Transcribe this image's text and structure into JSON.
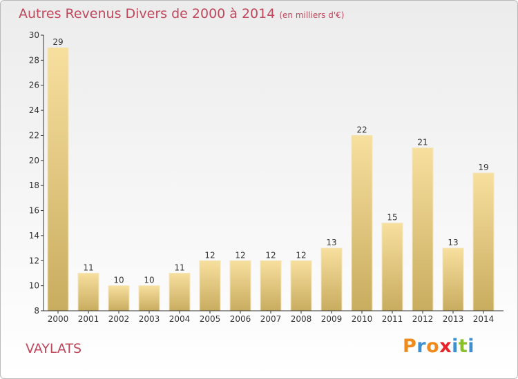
{
  "title": "Autres Revenus Divers de 2000 à 2014",
  "subtitle": "(en milliers d'€)",
  "place": "VAYLATS",
  "logo": "Proxiti",
  "colors": {
    "title": "#c0485d",
    "bar_light": "#f7df9e",
    "bar_dark": "#c8ac5f",
    "logo_letters": [
      "#f08a1d",
      "#3f8fcf",
      "#f08a1d",
      "#e8232a",
      "#3f8fcf",
      "#8bbf2a",
      "#3f8fcf"
    ]
  },
  "chart_data": {
    "type": "bar",
    "categories": [
      "2000",
      "2001",
      "2002",
      "2003",
      "2004",
      "2005",
      "2006",
      "2007",
      "2008",
      "2009",
      "2010",
      "2011",
      "2012",
      "2013",
      "2014"
    ],
    "values": [
      29,
      11,
      10,
      10,
      11,
      12,
      12,
      12,
      12,
      13,
      22,
      15,
      21,
      13,
      19
    ],
    "ylim": [
      8,
      30
    ],
    "yticks": [
      8,
      10,
      12,
      14,
      16,
      18,
      20,
      22,
      24,
      26,
      28,
      30
    ],
    "grid": false,
    "data_labels": true
  }
}
